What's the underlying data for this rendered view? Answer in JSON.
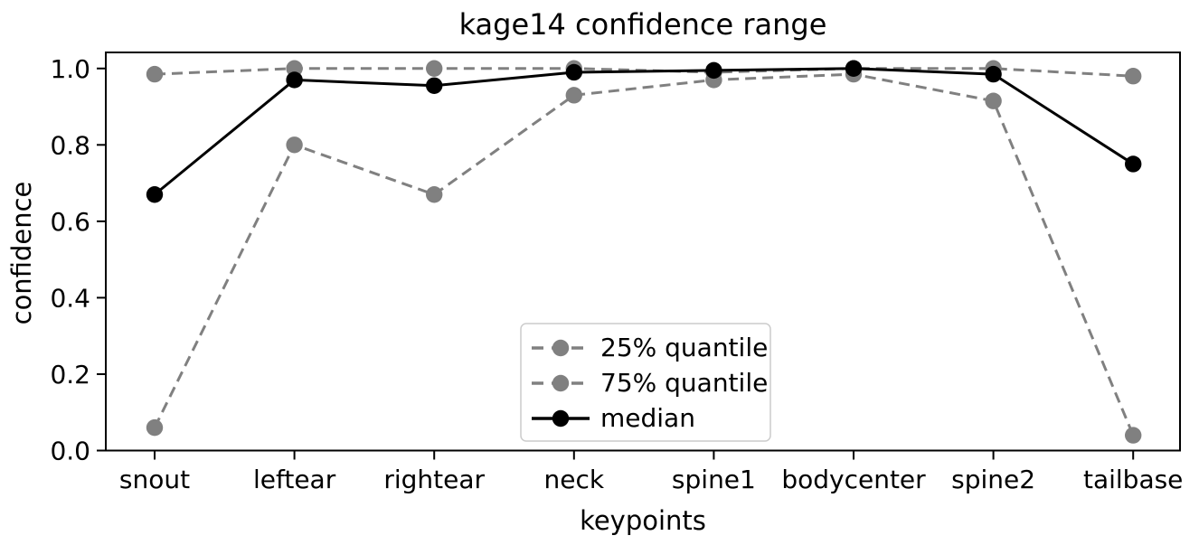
{
  "figure": {
    "title": "kage14 confidence range",
    "xlabel": "keypoints",
    "ylabel": "confidence"
  },
  "chart_data": {
    "type": "line",
    "title": "kage14 confidence range",
    "xlabel": "keypoints",
    "ylabel": "confidence",
    "categories": [
      "snout",
      "leftear",
      "rightear",
      "neck",
      "spine1",
      "bodycenter",
      "spine2",
      "tailbase"
    ],
    "series": [
      {
        "name": "25% quantile",
        "color": "#808080",
        "linestyle": "dashed",
        "marker": "circle",
        "values": [
          0.06,
          0.8,
          0.67,
          0.93,
          0.97,
          0.985,
          0.915,
          0.04
        ]
      },
      {
        "name": "75% quantile",
        "color": "#808080",
        "linestyle": "dashed",
        "marker": "circle",
        "values": [
          0.985,
          1.0,
          1.0,
          1.0,
          0.99,
          1.0,
          1.0,
          0.98
        ]
      },
      {
        "name": "median",
        "color": "#000000",
        "linestyle": "solid",
        "marker": "circle",
        "values": [
          0.67,
          0.97,
          0.955,
          0.99,
          0.995,
          1.0,
          0.985,
          0.75
        ]
      }
    ],
    "ylim": [
      0.0,
      1.042
    ],
    "yticks": [
      0.0,
      0.2,
      0.4,
      0.6,
      0.8,
      1.0
    ],
    "ytick_labels": [
      "0.0",
      "0.2",
      "0.4",
      "0.6",
      "0.8",
      "1.0"
    ],
    "grid": false,
    "legend_position": "lower-center",
    "legend_entries": [
      "25% quantile",
      "75% quantile",
      "median"
    ],
    "colors": {
      "axis": "#000000",
      "text": "#000000",
      "legend_border": "#cccccc",
      "background": "#ffffff"
    }
  }
}
